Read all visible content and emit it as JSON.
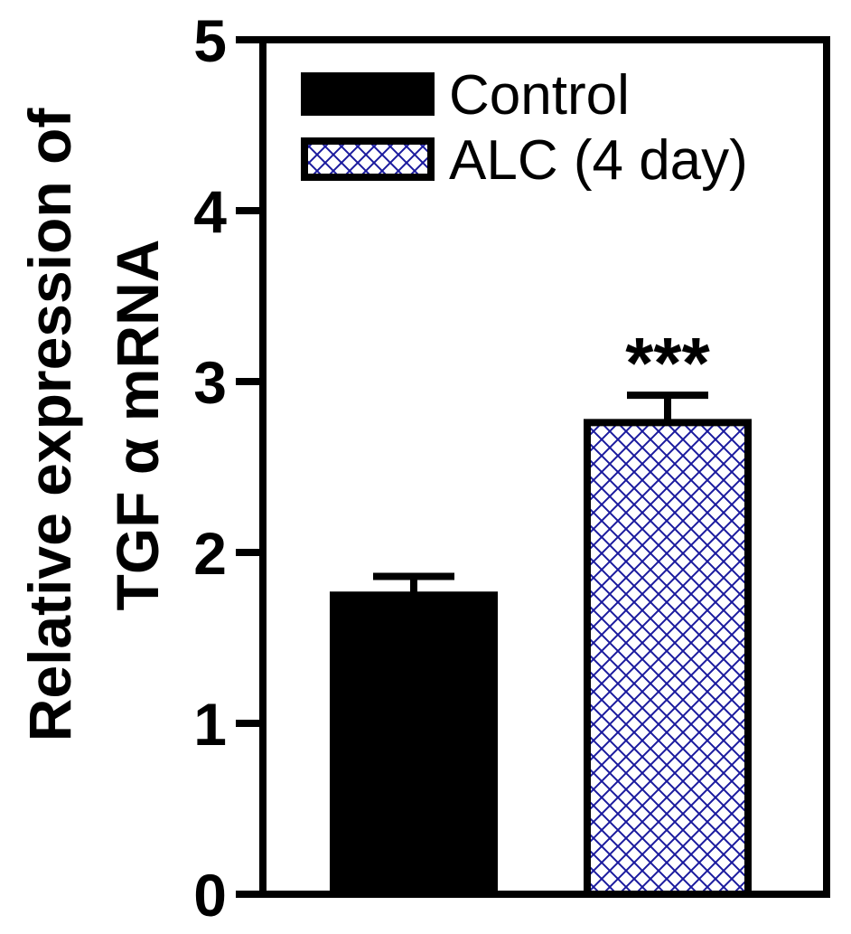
{
  "chart_data": {
    "type": "bar",
    "title": "",
    "xlabel": "",
    "ylabel_lines": [
      "Relative expression of",
      "TGF α mRNA"
    ],
    "ylim": [
      0,
      5
    ],
    "yticks": [
      "0",
      "1",
      "2",
      "3",
      "4",
      "5"
    ],
    "grid": false,
    "legend_position": "top-left",
    "series": [
      {
        "name": "Control",
        "value": 1.75,
        "error": 0.11,
        "color": "#000000",
        "pattern": "solid"
      },
      {
        "name": "ALC (4 day)",
        "value": 2.76,
        "error": 0.16,
        "color": "#1a1a9e",
        "pattern": "crosshatch"
      }
    ],
    "annotations": [
      {
        "series": "ALC (4 day)",
        "text": "***"
      }
    ]
  }
}
